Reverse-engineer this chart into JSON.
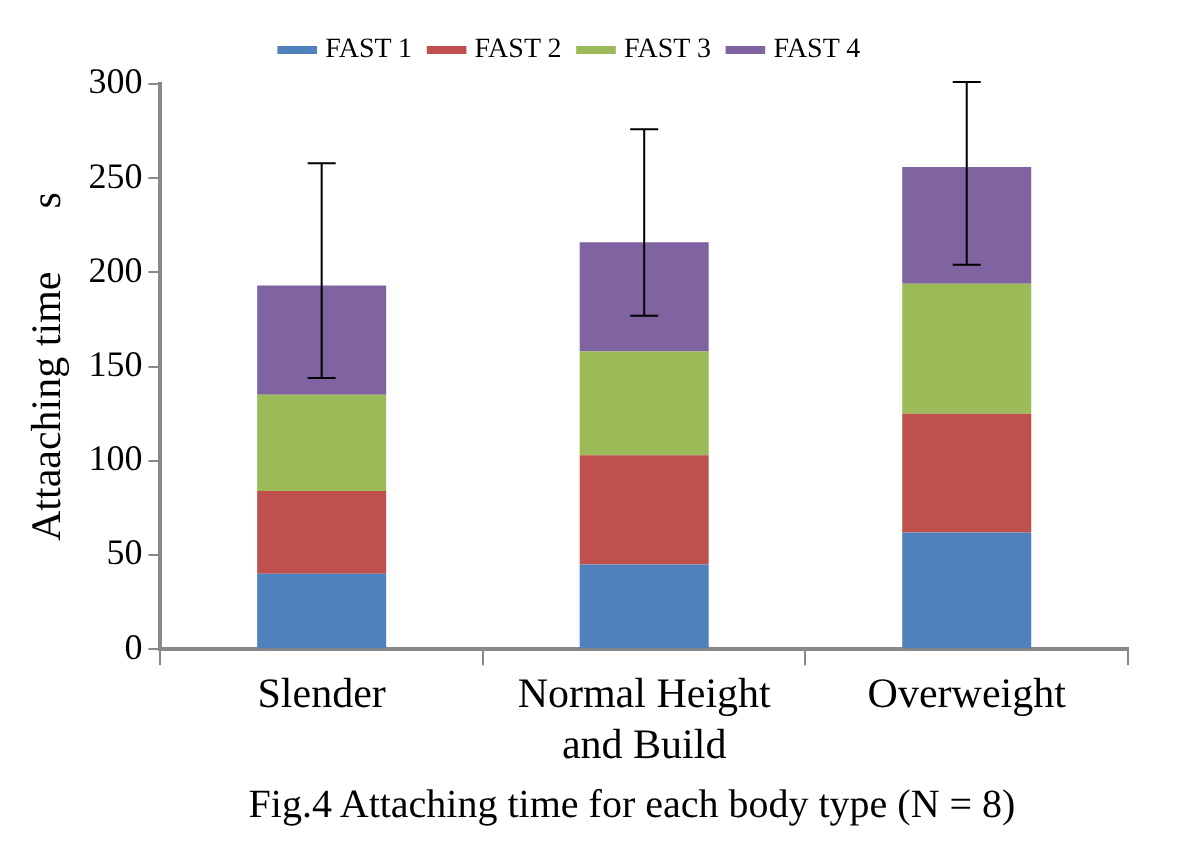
{
  "chart_data": {
    "type": "bar",
    "stacked": true,
    "categories": [
      "Slender",
      "Normal Height and Build",
      "Overweight"
    ],
    "series": [
      {
        "name": "FAST 1",
        "color": "#4f81bd",
        "values": [
          40,
          45,
          62
        ]
      },
      {
        "name": "FAST 2",
        "color": "#c0504d",
        "values": [
          44,
          58,
          63
        ]
      },
      {
        "name": "FAST 3",
        "color": "#9bbb59",
        "values": [
          51,
          55,
          69
        ]
      },
      {
        "name": "FAST 4",
        "color": "#8064a2",
        "values": [
          58,
          58,
          62
        ],
        "errors": [
          [
            144,
            258
          ],
          [
            177,
            276
          ],
          [
            204,
            301
          ]
        ]
      }
    ],
    "ylabel": "Attaaching time      s",
    "ylim": [
      0,
      300
    ],
    "yticks": [
      0,
      50,
      100,
      150,
      200,
      250,
      300
    ],
    "grid": false,
    "legend": "top",
    "annotations": [
      "Fig.4 Attaching time for each body type (N = 8)"
    ]
  }
}
